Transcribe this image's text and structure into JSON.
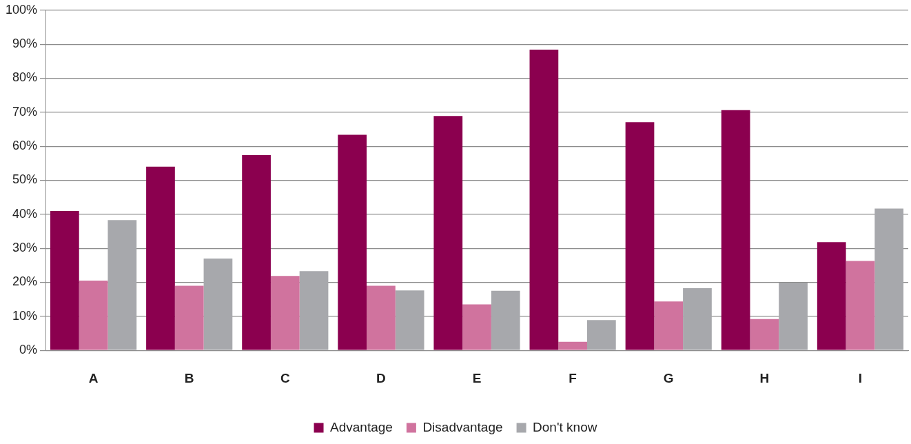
{
  "chart_data": {
    "type": "bar",
    "categories": [
      "A",
      "B",
      "C",
      "D",
      "E",
      "F",
      "G",
      "H",
      "I"
    ],
    "series": [
      {
        "name": "Advantage",
        "color": "#8b004f",
        "values": [
          41.0,
          54.0,
          57.4,
          63.4,
          68.9,
          88.4,
          67.1,
          70.6,
          31.8
        ]
      },
      {
        "name": "Disadvantage",
        "color": "#d0739e",
        "values": [
          20.5,
          19.0,
          21.9,
          19.0,
          13.5,
          2.5,
          14.4,
          9.2,
          26.3
        ]
      },
      {
        "name": "Don't know",
        "color": "#a7a8ac",
        "values": [
          38.3,
          27.0,
          23.3,
          17.6,
          17.5,
          8.9,
          18.3,
          19.9,
          41.7
        ]
      }
    ],
    "ylim": [
      0,
      100
    ],
    "yticks": [
      {
        "value": 0,
        "label": "0%"
      },
      {
        "value": 10,
        "label": "10%"
      },
      {
        "value": 20,
        "label": "20%"
      },
      {
        "value": 30,
        "label": "30%"
      },
      {
        "value": 40,
        "label": "40%"
      },
      {
        "value": 50,
        "label": "50%"
      },
      {
        "value": 60,
        "label": "60%"
      },
      {
        "value": 70,
        "label": "70%"
      },
      {
        "value": 80,
        "label": "80%"
      },
      {
        "value": 90,
        "label": "90%"
      },
      {
        "value": 100,
        "label": "100%"
      }
    ],
    "grid": "y",
    "legend": "bottom"
  }
}
